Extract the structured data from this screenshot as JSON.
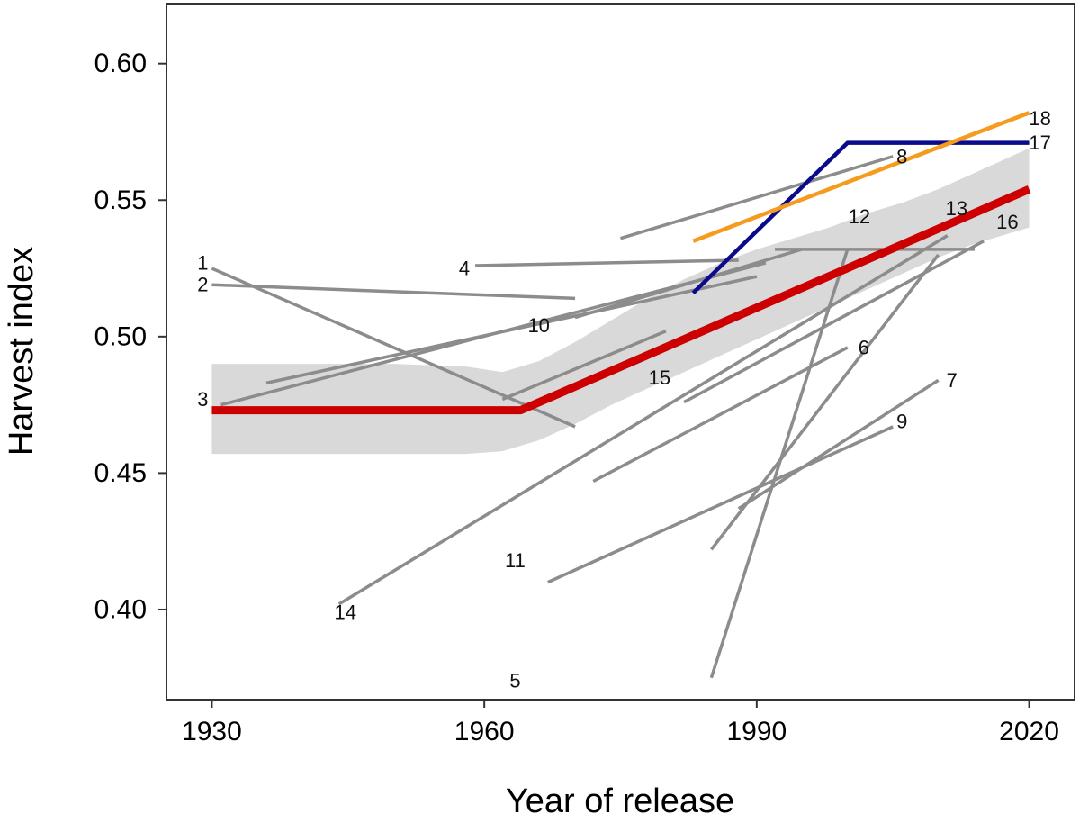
{
  "chart_data": {
    "type": "line",
    "title": "",
    "xlabel": "Year of release",
    "ylabel": "Harvest index",
    "xlim": [
      1925,
      2025
    ],
    "ylim": [
      0.367,
      0.622
    ],
    "x_ticks": [
      1930,
      1960,
      1990,
      2020
    ],
    "y_ticks": [
      0.4,
      0.45,
      0.5,
      0.55,
      0.6
    ],
    "x_tick_labels": [
      "1930",
      "1960",
      "1990",
      "2020"
    ],
    "y_tick_labels": [
      "0.40",
      "0.45",
      "0.50",
      "0.55",
      "0.60"
    ],
    "grid": false,
    "colors": {
      "studies": "#8c8c8c",
      "pooled": "#cc0000",
      "band": "#d9d9d9",
      "study17": "#0a0a8c",
      "study18": "#f59b1e",
      "frame": "#333333"
    },
    "confidence_band": {
      "x": [
        1930,
        1940,
        1950,
        1958,
        1962,
        1966,
        1970,
        1974,
        1978,
        1982,
        1986,
        1990,
        1994,
        1998,
        2002,
        2006,
        2010,
        2014,
        2018,
        2020
      ],
      "lower": [
        0.457,
        0.457,
        0.457,
        0.457,
        0.458,
        0.462,
        0.468,
        0.475,
        0.481,
        0.487,
        0.493,
        0.499,
        0.505,
        0.511,
        0.517,
        0.523,
        0.529,
        0.534,
        0.538,
        0.54
      ],
      "upper": [
        0.49,
        0.49,
        0.49,
        0.489,
        0.487,
        0.491,
        0.498,
        0.506,
        0.514,
        0.521,
        0.527,
        0.532,
        0.536,
        0.54,
        0.545,
        0.549,
        0.554,
        0.56,
        0.566,
        0.569
      ]
    },
    "series": [
      {
        "name": "1",
        "label": "1",
        "color": "studies",
        "x": [
          1930,
          1970
        ],
        "y": [
          0.525,
          0.467
        ]
      },
      {
        "name": "2",
        "label": "2",
        "color": "studies",
        "x": [
          1930,
          1970
        ],
        "y": [
          0.519,
          0.514
        ]
      },
      {
        "name": "3",
        "label": "3",
        "color": "studies",
        "x": [
          1931,
          1991
        ],
        "y": [
          0.475,
          0.527
        ]
      },
      {
        "name": "4",
        "label": "4",
        "color": "studies",
        "x": [
          1959,
          1988
        ],
        "y": [
          0.526,
          0.528
        ]
      },
      {
        "name": "5",
        "label": "5",
        "color": "studies",
        "x": [
          1985,
          2000
        ],
        "y": [
          0.375,
          0.532
        ]
      },
      {
        "name": "6",
        "label": "6",
        "color": "studies",
        "x": [
          1972,
          2000
        ],
        "y": [
          0.447,
          0.496
        ]
      },
      {
        "name": "7",
        "label": "7",
        "color": "studies",
        "x": [
          1988,
          2010
        ],
        "y": [
          0.437,
          0.484
        ]
      },
      {
        "name": "8",
        "label": "8",
        "color": "studies",
        "x": [
          1975,
          2005
        ],
        "y": [
          0.536,
          0.566
        ]
      },
      {
        "name": "9",
        "label": "9",
        "color": "studies",
        "x": [
          1967,
          2005
        ],
        "y": [
          0.41,
          0.467
        ]
      },
      {
        "name": "10",
        "label": "10",
        "color": "studies",
        "x": [
          1936,
          1990
        ],
        "y": [
          0.483,
          0.522
        ]
      },
      {
        "name": "11",
        "label": "11",
        "color": "studies",
        "x": [
          1985,
          2010
        ],
        "y": [
          0.422,
          0.53
        ]
      },
      {
        "name": "12",
        "label": "12",
        "color": "studies",
        "x": [
          1970,
          1995
        ],
        "y": [
          0.507,
          0.532
        ]
      },
      {
        "name": "13",
        "label": "13",
        "color": "studies",
        "x": [
          1992,
          2014
        ],
        "y": [
          0.532,
          0.532
        ]
      },
      {
        "name": "14",
        "label": "14",
        "color": "studies",
        "x": [
          1944,
          2011
        ],
        "y": [
          0.402,
          0.537
        ]
      },
      {
        "name": "15",
        "label": "15",
        "color": "studies",
        "x": [
          1962,
          1980
        ],
        "y": [
          0.477,
          0.502
        ]
      },
      {
        "name": "16",
        "label": "16",
        "color": "studies",
        "x": [
          1982,
          2015
        ],
        "y": [
          0.476,
          0.535
        ]
      },
      {
        "name": "17",
        "label": "17",
        "color": "study17",
        "x": [
          1983,
          2000,
          2020
        ],
        "y": [
          0.516,
          0.571,
          0.571
        ]
      },
      {
        "name": "18",
        "label": "18",
        "color": "study18",
        "x": [
          1983,
          2020
        ],
        "y": [
          0.535,
          0.582
        ]
      },
      {
        "name": "pooled",
        "label": "",
        "color": "pooled",
        "x": [
          1930,
          1964,
          2020
        ],
        "y": [
          0.473,
          0.473,
          0.554
        ]
      }
    ],
    "labels": [
      {
        "text": "1",
        "x": 1929.0,
        "y": 0.527
      },
      {
        "text": "2",
        "x": 1929.0,
        "y": 0.519
      },
      {
        "text": "3",
        "x": 1929.0,
        "y": 0.477
      },
      {
        "text": "4",
        "x": 1957.8,
        "y": 0.525
      },
      {
        "text": "5",
        "x": 1963.4,
        "y": 0.374
      },
      {
        "text": "6",
        "x": 2001.8,
        "y": 0.496
      },
      {
        "text": "7",
        "x": 2011.5,
        "y": 0.484
      },
      {
        "text": "8",
        "x": 2006.0,
        "y": 0.566
      },
      {
        "text": "9",
        "x": 2006.0,
        "y": 0.469
      },
      {
        "text": "10",
        "x": 1966.0,
        "y": 0.504
      },
      {
        "text": "11",
        "x": 1963.4,
        "y": 0.418
      },
      {
        "text": "12",
        "x": 2001.3,
        "y": 0.544
      },
      {
        "text": "13",
        "x": 2012.0,
        "y": 0.547
      },
      {
        "text": "14",
        "x": 1944.7,
        "y": 0.399
      },
      {
        "text": "15",
        "x": 1979.3,
        "y": 0.485
      },
      {
        "text": "16",
        "x": 2017.6,
        "y": 0.542
      },
      {
        "text": "17",
        "x": 2021.2,
        "y": 0.571
      },
      {
        "text": "18",
        "x": 2021.2,
        "y": 0.58
      }
    ]
  }
}
